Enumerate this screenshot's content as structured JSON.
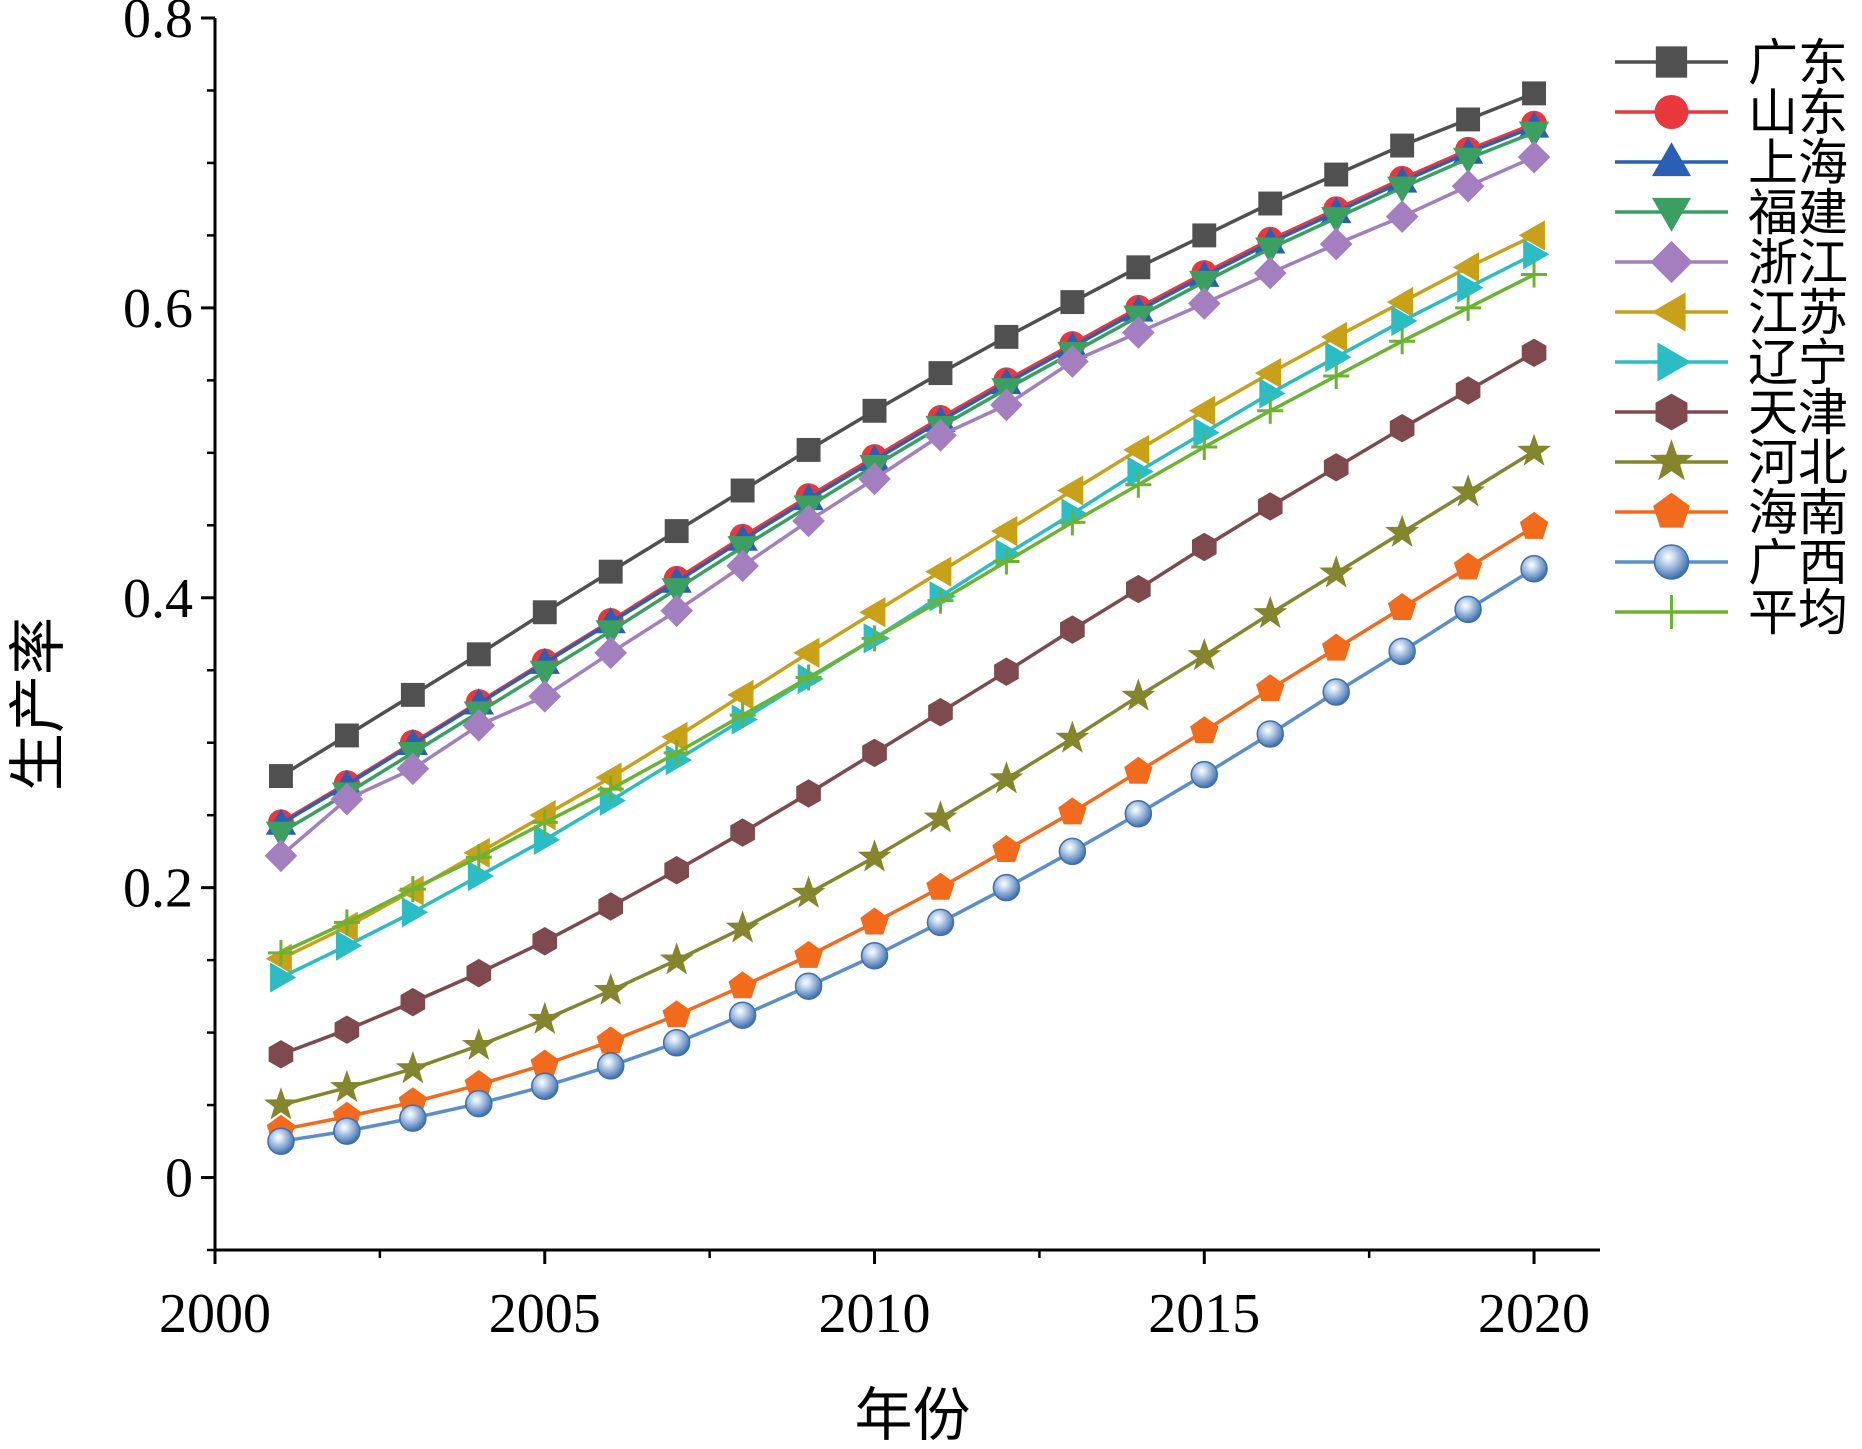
{
  "chart_data": {
    "type": "line",
    "title": "",
    "xlabel": "年份",
    "ylabel": "生产率",
    "xlim": [
      2000,
      2021
    ],
    "ylim": [
      -0.05,
      0.8
    ],
    "xticks": [
      2000,
      2005,
      2010,
      2015,
      2020
    ],
    "yticks": [
      0,
      0.2,
      0.4,
      0.6,
      0.8
    ],
    "ytick_labels": [
      "0",
      "0.2",
      "0.4",
      "0.6",
      "0.8"
    ],
    "grid": false,
    "legend": "right",
    "x": [
      2001,
      2002,
      2003,
      2004,
      2005,
      2006,
      2007,
      2008,
      2009,
      2010,
      2011,
      2012,
      2013,
      2014,
      2015,
      2016,
      2017,
      2018,
      2019,
      2020
    ],
    "series": [
      {
        "name": "广东",
        "color": "#505050",
        "marker": "square",
        "values": [
          0.277,
          0.305,
          0.333,
          0.361,
          0.39,
          0.418,
          0.446,
          0.474,
          0.502,
          0.529,
          0.555,
          0.58,
          0.604,
          0.628,
          0.65,
          0.672,
          0.692,
          0.712,
          0.73,
          0.748
        ]
      },
      {
        "name": "山东",
        "color": "#e8383d",
        "marker": "circle",
        "values": [
          0.245,
          0.272,
          0.3,
          0.328,
          0.356,
          0.384,
          0.413,
          0.442,
          0.47,
          0.497,
          0.524,
          0.55,
          0.575,
          0.6,
          0.624,
          0.647,
          0.668,
          0.689,
          0.709,
          0.727
        ]
      },
      {
        "name": "上海",
        "color": "#2a5fb4",
        "marker": "triangle-up",
        "values": [
          0.244,
          0.271,
          0.299,
          0.327,
          0.355,
          0.383,
          0.411,
          0.44,
          0.468,
          0.495,
          0.522,
          0.548,
          0.573,
          0.598,
          0.622,
          0.645,
          0.666,
          0.687,
          0.707,
          0.725
        ]
      },
      {
        "name": "福建",
        "color": "#3c9f62",
        "marker": "triangle-down",
        "values": [
          0.238,
          0.265,
          0.293,
          0.321,
          0.349,
          0.377,
          0.406,
          0.435,
          0.463,
          0.491,
          0.518,
          0.544,
          0.569,
          0.594,
          0.618,
          0.641,
          0.662,
          0.683,
          0.703,
          0.721
        ]
      },
      {
        "name": "浙江",
        "color": "#a47fc0",
        "marker": "diamond",
        "values": [
          0.222,
          0.261,
          0.282,
          0.312,
          0.332,
          0.362,
          0.391,
          0.422,
          0.453,
          0.482,
          0.512,
          0.533,
          0.563,
          0.583,
          0.603,
          0.624,
          0.644,
          0.663,
          0.684,
          0.704
        ]
      },
      {
        "name": "江苏",
        "color": "#c9a118",
        "marker": "triangle-left",
        "values": [
          0.151,
          0.173,
          0.198,
          0.224,
          0.25,
          0.276,
          0.304,
          0.333,
          0.362,
          0.39,
          0.418,
          0.446,
          0.474,
          0.502,
          0.529,
          0.555,
          0.58,
          0.604,
          0.628,
          0.65
        ]
      },
      {
        "name": "辽宁",
        "color": "#2cbdc4",
        "marker": "triangle-right",
        "values": [
          0.138,
          0.16,
          0.183,
          0.208,
          0.233,
          0.26,
          0.288,
          0.316,
          0.344,
          0.372,
          0.401,
          0.43,
          0.458,
          0.487,
          0.514,
          0.541,
          0.566,
          0.591,
          0.614,
          0.637
        ]
      },
      {
        "name": "天津",
        "color": "#7e4a4e",
        "marker": "hexagon",
        "values": [
          0.085,
          0.102,
          0.121,
          0.141,
          0.163,
          0.187,
          0.212,
          0.238,
          0.265,
          0.293,
          0.321,
          0.349,
          0.378,
          0.406,
          0.435,
          0.463,
          0.49,
          0.517,
          0.543,
          0.569
        ]
      },
      {
        "name": "河北",
        "color": "#85852e",
        "marker": "star",
        "values": [
          0.05,
          0.062,
          0.075,
          0.091,
          0.109,
          0.129,
          0.15,
          0.172,
          0.196,
          0.221,
          0.248,
          0.275,
          0.303,
          0.332,
          0.36,
          0.389,
          0.417,
          0.445,
          0.473,
          0.501
        ]
      },
      {
        "name": "海南",
        "color": "#f26a1b",
        "marker": "pentagon",
        "values": [
          0.033,
          0.042,
          0.052,
          0.064,
          0.078,
          0.094,
          0.112,
          0.132,
          0.153,
          0.176,
          0.2,
          0.226,
          0.252,
          0.28,
          0.308,
          0.337,
          0.365,
          0.393,
          0.421,
          0.449
        ]
      },
      {
        "name": "广西",
        "color": "#5b8fc9",
        "marker": "sphere",
        "values": [
          0.025,
          0.032,
          0.041,
          0.051,
          0.063,
          0.077,
          0.093,
          0.112,
          0.132,
          0.153,
          0.176,
          0.2,
          0.225,
          0.251,
          0.278,
          0.306,
          0.335,
          0.363,
          0.392,
          0.42
        ]
      },
      {
        "name": "平均",
        "color": "#6bb331",
        "marker": "plus",
        "values": [
          0.155,
          0.176,
          0.199,
          0.221,
          0.245,
          0.268,
          0.293,
          0.319,
          0.345,
          0.372,
          0.398,
          0.425,
          0.452,
          0.478,
          0.504,
          0.529,
          0.553,
          0.577,
          0.6,
          0.623
        ]
      }
    ]
  }
}
